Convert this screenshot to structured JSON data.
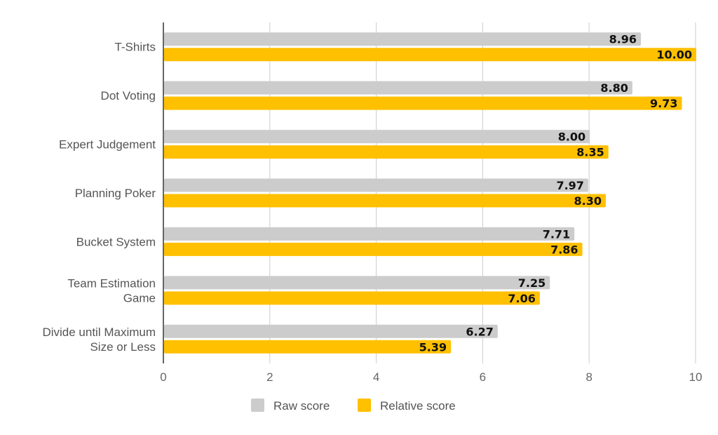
{
  "chart_data": {
    "type": "bar",
    "orientation": "horizontal",
    "categories": [
      [
        "T-Shirts"
      ],
      [
        "Dot Voting"
      ],
      [
        "Expert Judgement"
      ],
      [
        "Planning Poker"
      ],
      [
        "Bucket System"
      ],
      [
        "Team Estimation",
        "Game"
      ],
      [
        "Divide until Maximum",
        "Size or Less"
      ]
    ],
    "series": [
      {
        "name": "Raw score",
        "color": "#cccccc",
        "values": [
          8.96,
          8.8,
          8.0,
          7.97,
          7.71,
          7.25,
          6.27
        ]
      },
      {
        "name": "Relative score",
        "color": "#ffc000",
        "values": [
          10.0,
          9.73,
          8.35,
          8.3,
          7.86,
          7.06,
          5.39
        ]
      }
    ],
    "data_labels": [
      [
        "8.96",
        "8.80",
        "8.00",
        "7.97",
        "7.71",
        "7.25",
        "6.27"
      ],
      [
        "10.00",
        "9.73",
        "8.35",
        "8.30",
        "7.86",
        "7.06",
        "5.39"
      ]
    ],
    "xlim": [
      0,
      10
    ],
    "xticks": [
      0,
      2,
      4,
      6,
      8,
      10
    ],
    "grid": true,
    "legend_position": "bottom",
    "title": "",
    "xlabel": "",
    "ylabel": ""
  }
}
